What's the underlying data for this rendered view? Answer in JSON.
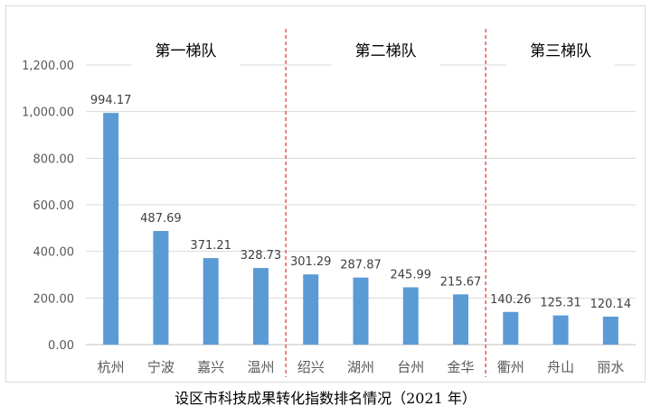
{
  "caption": "设区市科技成果转化指数排名情况（2021 年）",
  "chart_data": {
    "type": "bar",
    "categories": [
      "杭州",
      "宁波",
      "嘉兴",
      "温州",
      "绍兴",
      "湖州",
      "台州",
      "金华",
      "衢州",
      "舟山",
      "丽水"
    ],
    "values": [
      994.17,
      487.69,
      371.21,
      328.73,
      301.29,
      287.87,
      245.99,
      215.67,
      140.26,
      125.31,
      120.14
    ],
    "value_labels": [
      "994.17",
      "487.69",
      "371.21",
      "328.73",
      "301.29",
      "287.87",
      "245.99",
      "215.67",
      "140.26",
      "125.31",
      "120.14"
    ],
    "ylim": [
      0,
      1200
    ],
    "yticks": [
      0,
      200,
      400,
      600,
      800,
      1000,
      1200
    ],
    "ytick_labels": [
      "0.00",
      "200.00",
      "400.00",
      "600.00",
      "800.00",
      "1,000.00",
      "1,200.00"
    ],
    "grid": true,
    "bar_color": "#5b9bd5",
    "divider_color": "#e03030",
    "groups": [
      {
        "label": "第一梯队",
        "range": [
          0,
          3
        ]
      },
      {
        "label": "第二梯队",
        "range": [
          4,
          7
        ]
      },
      {
        "label": "第三梯队",
        "range": [
          8,
          10
        ]
      }
    ]
  }
}
